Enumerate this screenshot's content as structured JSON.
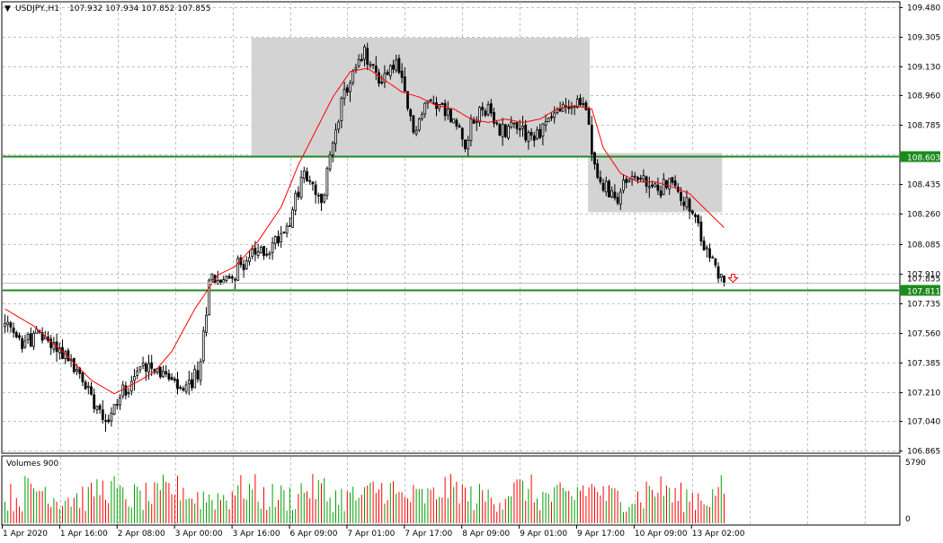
{
  "header": {
    "arrow_glyph": "▼",
    "symbol": "USDJPY.,H1",
    "ohlc": "107.932 107.934 107.852 107.855"
  },
  "price_axis": {
    "ticks": [
      "109.480",
      "109.305",
      "109.130",
      "108.960",
      "108.785",
      "108.610",
      "108.435",
      "108.260",
      "108.085",
      "107.910",
      "107.735",
      "107.560",
      "107.385",
      "107.210",
      "107.040",
      "106.865"
    ],
    "current_price_label": "107.855",
    "lines": [
      {
        "price": 108.603,
        "label": "108.603",
        "color": "#1e8a1e"
      },
      {
        "price": 107.811,
        "label": "107.811",
        "color": "#1e8a1e"
      }
    ]
  },
  "time_axis": {
    "labels": [
      "1 Apr 2020",
      "1 Apr 16:00",
      "2 Apr 08:00",
      "3 Apr 00:00",
      "3 Apr 16:00",
      "6 Apr 09:00",
      "7 Apr 01:00",
      "7 Apr 17:00",
      "8 Apr 09:00",
      "9 Apr 01:00",
      "9 Apr 17:00",
      "10 Apr 09:00",
      "13 Apr 02:00"
    ]
  },
  "volume_panel": {
    "label": "Volumes 900",
    "max_label": "5790",
    "zero_label": "0"
  },
  "colors": {
    "candle": "#000000",
    "ma": "#ff0000",
    "zone": "#d3d3d3",
    "level_line": "#1e8a1e",
    "grid": "#c0c0c0",
    "vol_up": "#00a000",
    "vol_down": "#ff0000",
    "sell_arrow": "#ff0000"
  },
  "chart_data": {
    "type": "candlestick",
    "symbol": "USDJPY.",
    "timeframe": "H1",
    "ylim": [
      106.865,
      109.48
    ],
    "close_path": [
      [
        0,
        107.6
      ],
      [
        5,
        107.5
      ],
      [
        12,
        107.55
      ],
      [
        20,
        107.45
      ],
      [
        30,
        107.2
      ],
      [
        36,
        107.05
      ],
      [
        42,
        107.25
      ],
      [
        50,
        107.4
      ],
      [
        56,
        107.3
      ],
      [
        62,
        107.2
      ],
      [
        68,
        107.35
      ],
      [
        71,
        107.9
      ],
      [
        76,
        107.85
      ],
      [
        84,
        108.0
      ],
      [
        92,
        108.05
      ],
      [
        98,
        108.2
      ],
      [
        104,
        108.5
      ],
      [
        110,
        108.3
      ],
      [
        115,
        108.8
      ],
      [
        120,
        109.05
      ],
      [
        125,
        109.2
      ],
      [
        130,
        109.05
      ],
      [
        136,
        109.15
      ],
      [
        142,
        108.75
      ],
      [
        148,
        108.95
      ],
      [
        154,
        108.85
      ],
      [
        160,
        108.7
      ],
      [
        166,
        108.9
      ],
      [
        172,
        108.75
      ],
      [
        178,
        108.8
      ],
      [
        184,
        108.7
      ],
      [
        190,
        108.85
      ],
      [
        196,
        108.9
      ],
      [
        202,
        108.9
      ],
      [
        206,
        108.45
      ],
      [
        212,
        108.35
      ],
      [
        218,
        108.5
      ],
      [
        225,
        108.4
      ],
      [
        231,
        108.45
      ],
      [
        236,
        108.35
      ],
      [
        240,
        108.2
      ],
      [
        245,
        108.0
      ],
      [
        250,
        107.855
      ]
    ],
    "ma_path": [
      [
        0,
        107.7
      ],
      [
        10,
        107.6
      ],
      [
        20,
        107.45
      ],
      [
        30,
        107.28
      ],
      [
        38,
        107.2
      ],
      [
        46,
        107.27
      ],
      [
        52,
        107.33
      ],
      [
        58,
        107.45
      ],
      [
        66,
        107.7
      ],
      [
        74,
        107.9
      ],
      [
        80,
        107.95
      ],
      [
        88,
        108.1
      ],
      [
        96,
        108.3
      ],
      [
        102,
        108.55
      ],
      [
        108,
        108.75
      ],
      [
        114,
        108.95
      ],
      [
        120,
        109.1
      ],
      [
        126,
        109.12
      ],
      [
        132,
        109.05
      ],
      [
        138,
        108.98
      ],
      [
        144,
        108.95
      ],
      [
        150,
        108.9
      ],
      [
        156,
        108.88
      ],
      [
        162,
        108.82
      ],
      [
        168,
        108.8
      ],
      [
        174,
        108.82
      ],
      [
        180,
        108.8
      ],
      [
        186,
        108.82
      ],
      [
        192,
        108.88
      ],
      [
        198,
        108.9
      ],
      [
        204,
        108.88
      ],
      [
        208,
        108.65
      ],
      [
        214,
        108.5
      ],
      [
        220,
        108.45
      ],
      [
        226,
        108.45
      ],
      [
        232,
        108.42
      ],
      [
        238,
        108.38
      ],
      [
        244,
        108.28
      ],
      [
        250,
        108.18
      ]
    ],
    "zones": [
      {
        "bar_from": 86,
        "bar_to": 203,
        "price_top": 109.3,
        "price_bottom": 108.6
      },
      {
        "bar_from": 203,
        "bar_to": 249,
        "price_top": 108.62,
        "price_bottom": 108.27
      }
    ],
    "levels": [
      108.603,
      107.811
    ],
    "current_price": 107.855,
    "signal": "sell"
  }
}
